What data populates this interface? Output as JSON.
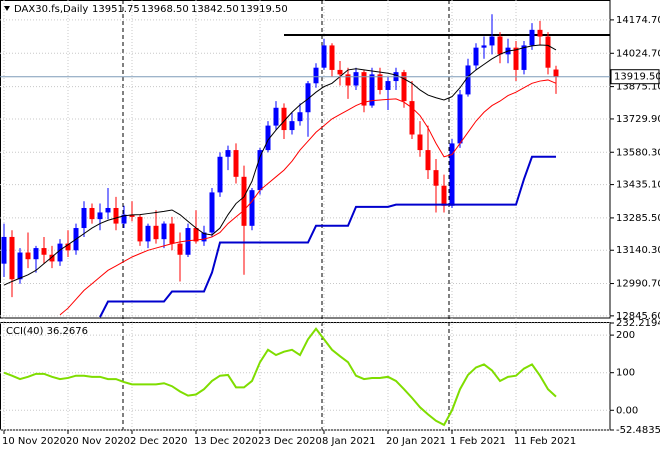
{
  "header": {
    "symbol": "DAX30.fs,Daily",
    "values": [
      "13951.75",
      "13968.50",
      "13842.50",
      "13919.50"
    ]
  },
  "chart_data": [
    {
      "type": "candlestick",
      "categories": [
        "10 Nov 2020",
        null,
        null,
        null,
        null,
        null,
        null,
        null,
        "20 Nov 2020",
        null,
        null,
        null,
        null,
        null,
        null,
        null,
        "2 Dec 2020",
        null,
        null,
        null,
        null,
        null,
        null,
        null,
        "13 Dec 2020",
        null,
        null,
        null,
        null,
        null,
        null,
        null,
        "23 Dec 2020",
        null,
        null,
        null,
        null,
        null,
        null,
        null,
        "8 Jan 2021",
        null,
        null,
        null,
        null,
        null,
        null,
        null,
        "20 Jan 2021",
        null,
        null,
        null,
        null,
        null,
        null,
        null,
        "1 Feb 2021",
        null,
        null,
        null,
        null,
        null,
        null,
        null,
        "11 Feb 2021",
        null,
        null,
        null,
        null,
        null
      ],
      "open": [
        13080,
        13200,
        13010,
        13130,
        13100,
        13150,
        13120,
        13090,
        13170,
        13140,
        13240,
        13330,
        13280,
        13310,
        13330,
        13260,
        13300,
        13290,
        13180,
        13250,
        13190,
        13260,
        13170,
        13120,
        13240,
        13180,
        13220,
        13400,
        13560,
        13590,
        13470,
        13250,
        13410,
        13590,
        13700,
        13780,
        13680,
        13720,
        13760,
        13890,
        13960,
        14060,
        13950,
        13930,
        13880,
        13940,
        13790,
        13930,
        13860,
        13900,
        13940,
        13810,
        13660,
        13590,
        13500,
        13430,
        13340,
        13620,
        13840,
        13970,
        14050,
        14060,
        14100,
        14020,
        14050,
        13950,
        14060,
        14130,
        14100,
        13951.75
      ],
      "high": [
        13260,
        13230,
        13150,
        13220,
        13160,
        13200,
        13160,
        13190,
        13230,
        13260,
        13360,
        13350,
        13350,
        13420,
        13380,
        13340,
        13360,
        13300,
        13260,
        13320,
        13270,
        13290,
        13220,
        13260,
        13320,
        13250,
        13420,
        13580,
        13610,
        13620,
        13520,
        13420,
        13600,
        13720,
        13810,
        13800,
        13760,
        13800,
        13900,
        13980,
        14090,
        14070,
        13990,
        13960,
        13960,
        13950,
        13960,
        13960,
        13920,
        13960,
        13950,
        13900,
        13720,
        13700,
        13550,
        13480,
        13640,
        13860,
        14000,
        14070,
        14100,
        14200,
        14120,
        14090,
        14080,
        14080,
        14160,
        14170,
        14120,
        13968.5
      ],
      "low": [
        13020,
        12930,
        12990,
        13060,
        13040,
        13080,
        13060,
        13070,
        13110,
        13120,
        13200,
        13260,
        13230,
        13280,
        13230,
        13240,
        13270,
        13160,
        13150,
        13170,
        13150,
        13140,
        13000,
        13110,
        13170,
        13160,
        13200,
        13380,
        13500,
        13440,
        13030,
        13230,
        13390,
        13580,
        13680,
        13640,
        13660,
        13700,
        13650,
        13870,
        13950,
        13920,
        13880,
        13820,
        13860,
        13760,
        13780,
        13840,
        13770,
        13860,
        13780,
        13640,
        13560,
        13460,
        13310,
        13310,
        13330,
        13600,
        13830,
        13950,
        14000,
        14020,
        13980,
        13980,
        13900,
        13930,
        14040,
        14060,
        13930,
        13842.5
      ],
      "close": [
        13200,
        13010,
        13130,
        13100,
        13150,
        13120,
        13090,
        13170,
        13140,
        13240,
        13330,
        13280,
        13310,
        13330,
        13260,
        13300,
        13290,
        13180,
        13250,
        13190,
        13260,
        13170,
        13120,
        13240,
        13180,
        13220,
        13400,
        13560,
        13590,
        13470,
        13250,
        13410,
        13590,
        13700,
        13780,
        13680,
        13720,
        13760,
        13890,
        13960,
        14060,
        13950,
        13930,
        13880,
        13940,
        13790,
        13930,
        13860,
        13900,
        13940,
        13810,
        13660,
        13590,
        13500,
        13430,
        13340,
        13620,
        13840,
        13970,
        14050,
        14060,
        14100,
        14020,
        14050,
        13950,
        14060,
        14130,
        14100,
        13960,
        13919.5
      ],
      "up_color": "#0000ff",
      "down_color": "#ff0000",
      "overlays": [
        {
          "color": "#000000",
          "values": [
            12984,
            13000,
            13015,
            13030,
            13050,
            13080,
            13110,
            13141,
            13165,
            13190,
            13215,
            13240,
            13260,
            13275,
            13285,
            13295,
            13299,
            13300,
            13305,
            13310,
            13315,
            13321,
            13300,
            13270,
            13240,
            13215,
            13209,
            13240,
            13300,
            13350,
            13380,
            13450,
            13560,
            13635,
            13680,
            13720,
            13760,
            13793,
            13820,
            13850,
            13875,
            13890,
            13920,
            13950,
            13955,
            13950,
            13945,
            13940,
            13935,
            13927,
            13910,
            13890,
            13860,
            13837,
            13825,
            13815,
            13830,
            13870,
            13920,
            13950,
            13975,
            14000,
            14020,
            14035,
            14040,
            14050,
            14058,
            14062,
            14060,
            14040
          ]
        },
        {
          "color": "#ff0000",
          "values": [
            null,
            null,
            null,
            null,
            null,
            null,
            null,
            12850,
            12880,
            12920,
            12960,
            12990,
            13020,
            13050,
            13070,
            13090,
            13110,
            13125,
            13140,
            13150,
            13160,
            13170,
            13178,
            13183,
            13186,
            13190,
            13200,
            13220,
            13260,
            13290,
            13320,
            13360,
            13410,
            13440,
            13470,
            13500,
            13540,
            13590,
            13630,
            13670,
            13700,
            13730,
            13750,
            13770,
            13790,
            13805,
            13812,
            13815,
            13818,
            13820,
            13805,
            13780,
            13745,
            13690,
            13620,
            13560,
            13570,
            13620,
            13670,
            13720,
            13760,
            13790,
            13810,
            13835,
            13850,
            13870,
            13890,
            13900,
            13905,
            13890
          ]
        },
        {
          "color": "#0000cd",
          "values": [
            null,
            null,
            null,
            null,
            null,
            null,
            null,
            null,
            null,
            null,
            null,
            null,
            12840,
            12910,
            12910,
            12910,
            12910,
            12910,
            12910,
            12910,
            12910,
            12955,
            12955,
            12955,
            12955,
            12955,
            13040,
            13175,
            13175,
            13175,
            13175,
            13175,
            13175,
            13175,
            13175,
            13175,
            13175,
            13175,
            13175,
            13250,
            13250,
            13250,
            13250,
            13250,
            13335,
            13335,
            13335,
            13335,
            13335,
            13345,
            13345,
            13345,
            13345,
            13345,
            13345,
            13345,
            13345,
            13345,
            13345,
            13345,
            13345,
            13345,
            13345,
            13345,
            13345,
            13460,
            13560,
            13560,
            13560,
            13560
          ]
        }
      ],
      "resistance": {
        "value": 14107,
        "from": 35
      },
      "ylim": [
        12836,
        14264
      ],
      "yticks": [
        {
          "value": 14174.7,
          "label": "14174.70"
        },
        {
          "value": 14024.7,
          "label": "14024.70"
        },
        {
          "value": 13875.1,
          "label": "13875.10"
        },
        {
          "value": 13729.9,
          "label": "13729.90"
        },
        {
          "value": 13580.3,
          "label": "13580.30"
        },
        {
          "value": 13435.1,
          "label": "13435.10"
        },
        {
          "value": 13285.5,
          "label": "13285.50"
        },
        {
          "value": 13140.3,
          "label": "13140.30"
        },
        {
          "value": 12990.7,
          "label": "12990.70"
        },
        {
          "value": 12845.6,
          "label": "12845.60"
        }
      ],
      "grid": true
    },
    {
      "type": "line",
      "title": "CCI(40) 36.2676",
      "color": "#7fdd00",
      "values": [
        100,
        92,
        83,
        89,
        97,
        97,
        89,
        83,
        86,
        92,
        92,
        89,
        89,
        83,
        83,
        75,
        69,
        69,
        69,
        69,
        72,
        64,
        50,
        39,
        42,
        56,
        78,
        92,
        94,
        61,
        61,
        78,
        128,
        161,
        147,
        156,
        161,
        147,
        189,
        217,
        189,
        161,
        144,
        128,
        92,
        83,
        86,
        86,
        89,
        78,
        56,
        33,
        8,
        -11,
        -28,
        -39,
        0,
        56,
        94,
        114,
        122,
        106,
        78,
        89,
        92,
        111,
        122,
        92,
        56,
        36.2676
      ],
      "ylim": [
        -52.4835,
        232.2194
      ],
      "yticks": [
        232.2194,
        200,
        100,
        {
          "value": 0,
          "label": "0.00"
        },
        -52.4835
      ],
      "grid": true
    }
  ]
}
